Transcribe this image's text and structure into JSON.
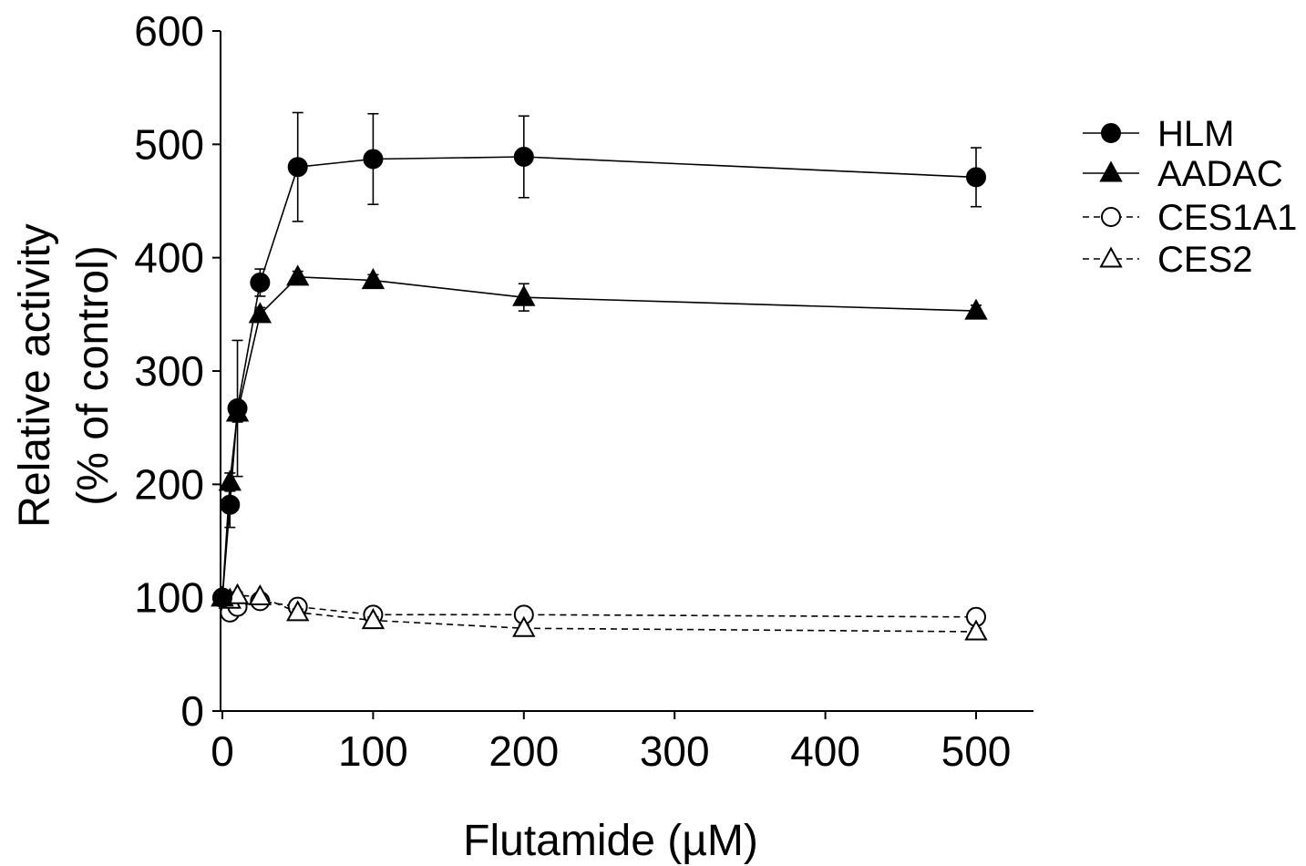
{
  "chart_data": {
    "type": "line",
    "xlabel": "Flutamide (µM)",
    "ylabel_line1": "Relative activity",
    "ylabel_line2": "(% of control)",
    "xlim": [
      0,
      540
    ],
    "ylim": [
      0,
      600
    ],
    "xticks": [
      0,
      100,
      200,
      300,
      400,
      500
    ],
    "yticks": [
      0,
      100,
      200,
      300,
      400,
      500,
      600
    ],
    "grid": false,
    "legend_position": "right",
    "x": [
      0,
      5,
      10,
      25,
      50,
      100,
      200,
      500
    ],
    "series": [
      {
        "name": "HLM",
        "marker": "circle",
        "filled": true,
        "line": "solid",
        "values": [
          100,
          182,
          267,
          378,
          480,
          487,
          489,
          471
        ],
        "err": [
          0,
          20,
          60,
          12,
          48,
          40,
          36,
          26
        ]
      },
      {
        "name": "AADAC",
        "marker": "triangle",
        "filled": true,
        "line": "solid",
        "values": [
          100,
          202,
          263,
          350,
          383,
          380,
          365,
          353
        ],
        "err": [
          0,
          8,
          8,
          6,
          5,
          5,
          12,
          5
        ]
      },
      {
        "name": "CES1A1",
        "marker": "circle",
        "filled": false,
        "line": "dashed",
        "values": [
          100,
          87,
          92,
          97,
          92,
          85,
          85,
          83
        ],
        "err": [
          0,
          3,
          3,
          3,
          3,
          4,
          3,
          3
        ]
      },
      {
        "name": "CES2",
        "marker": "triangle",
        "filled": false,
        "line": "dashed",
        "values": [
          100,
          98,
          102,
          101,
          87,
          80,
          73,
          70
        ],
        "err": [
          0,
          3,
          3,
          3,
          3,
          3,
          3,
          3
        ]
      }
    ]
  }
}
